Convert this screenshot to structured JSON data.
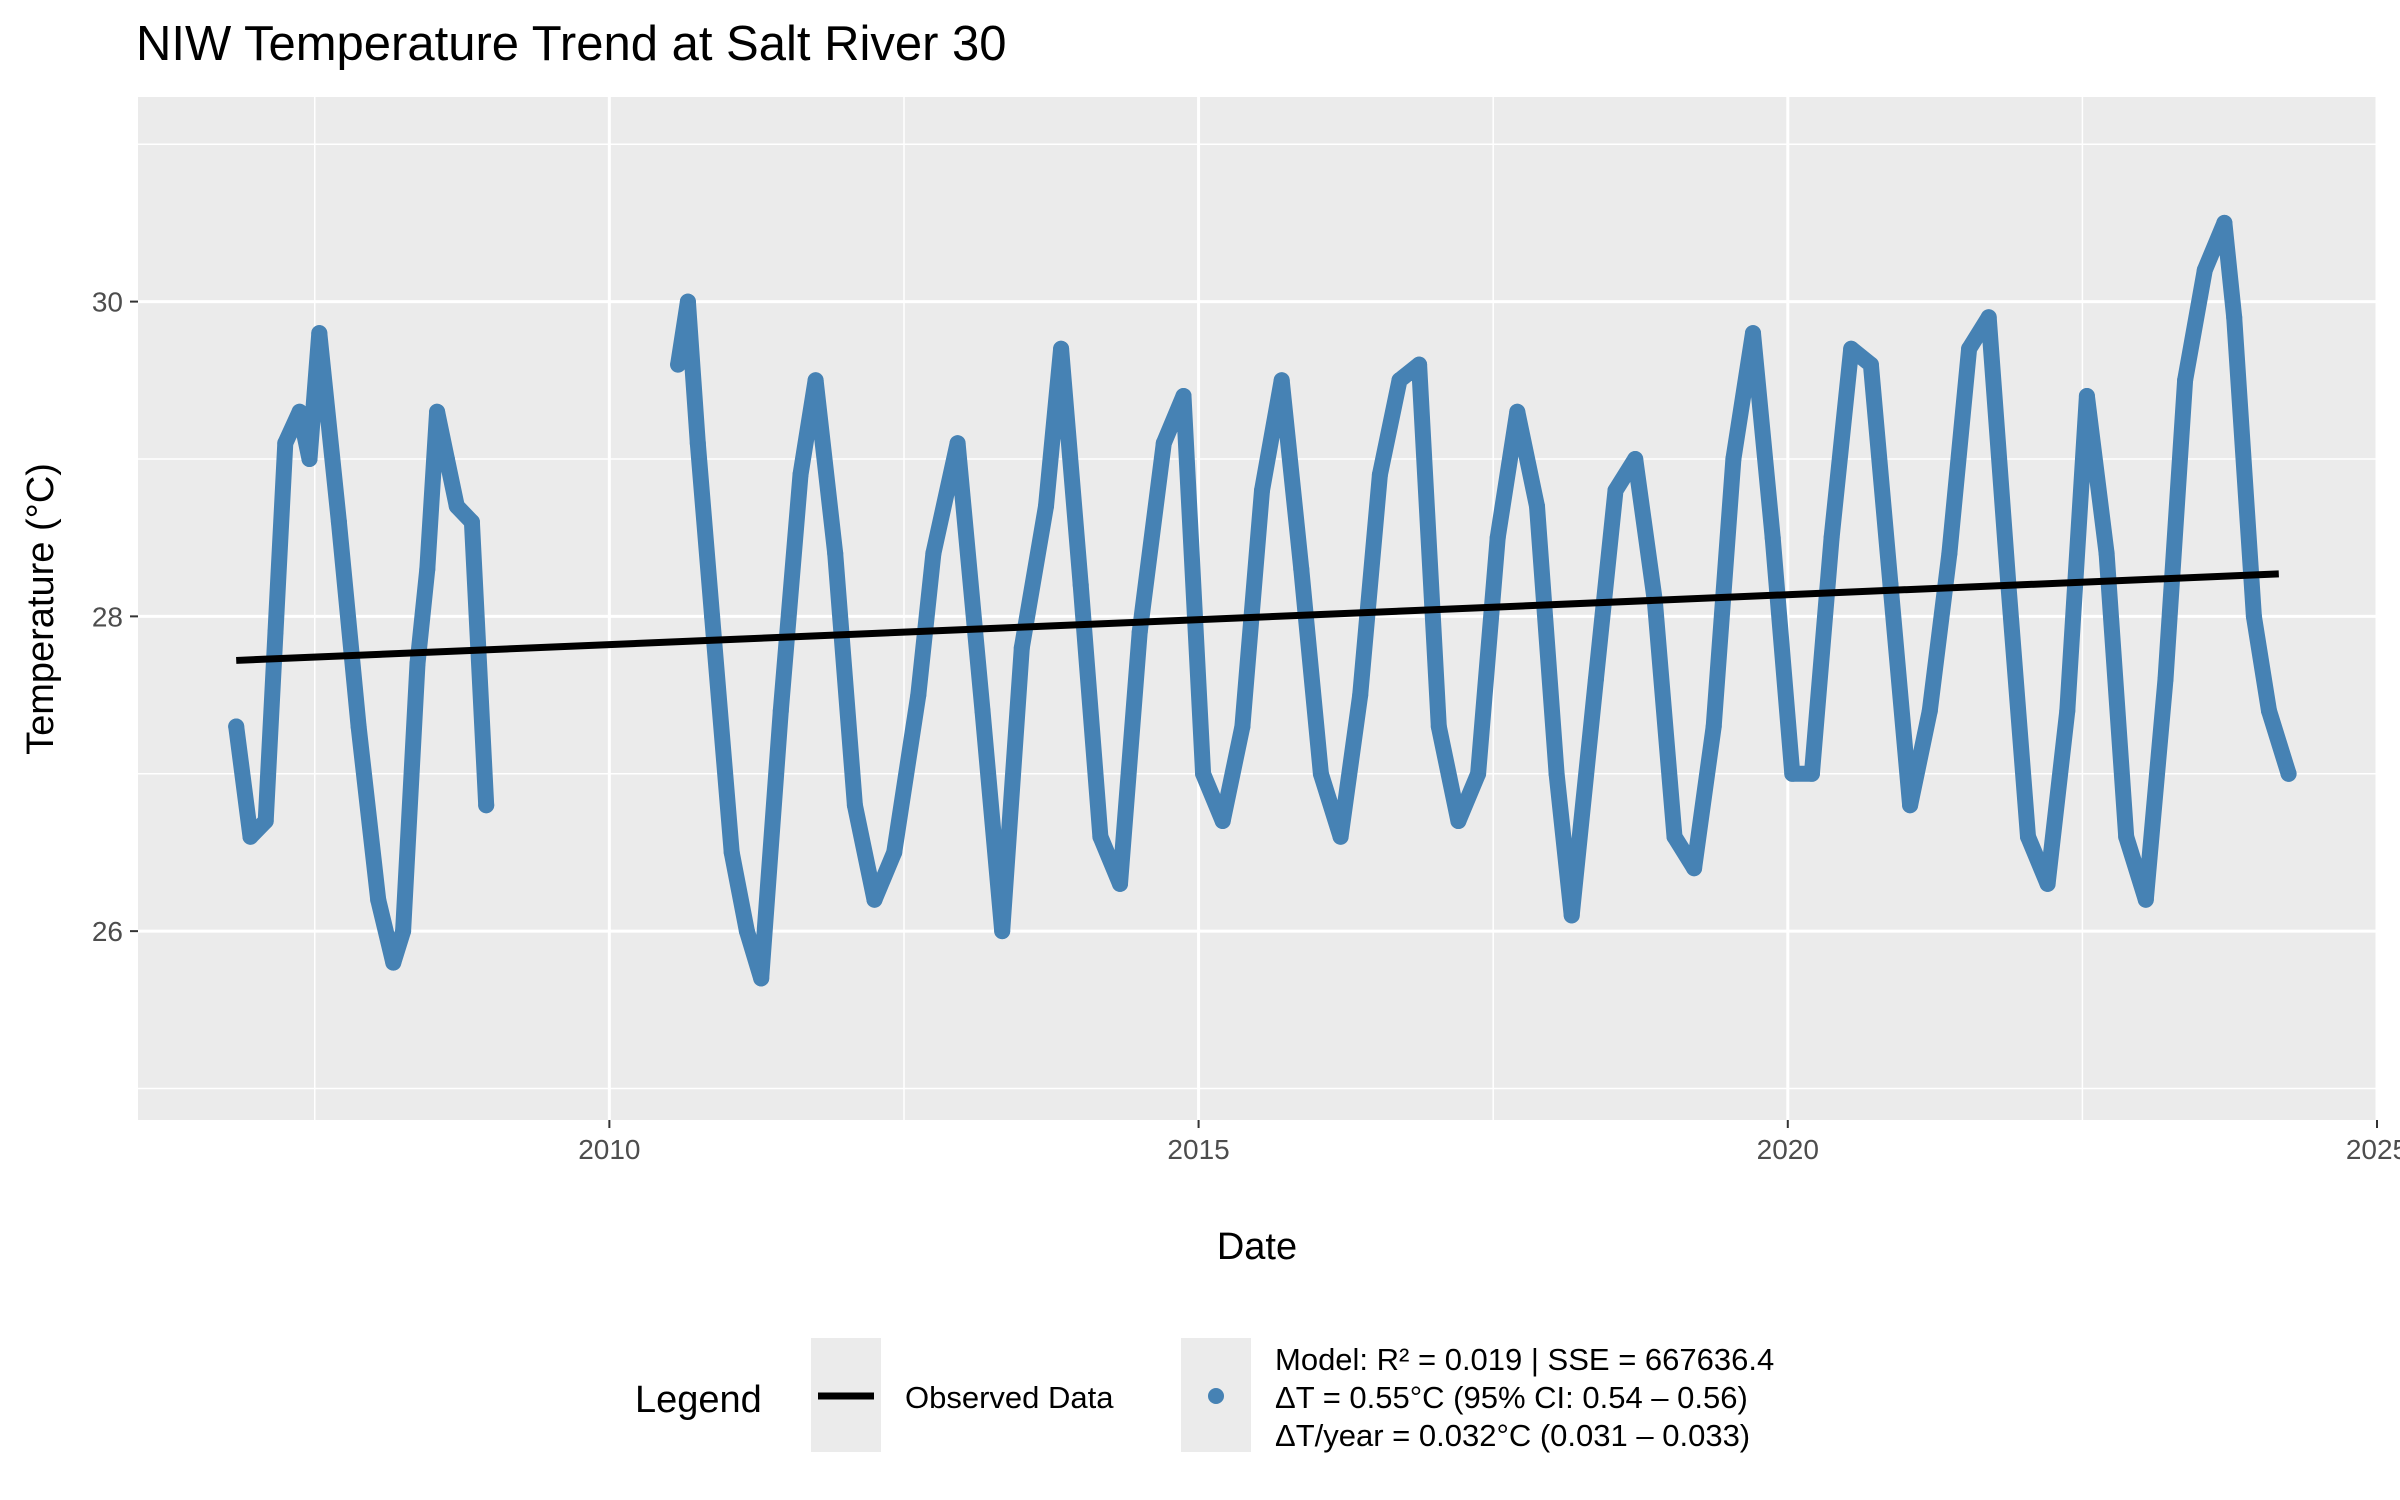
{
  "chart_data": {
    "type": "line",
    "title": "NIW Temperature Trend at Salt River 30",
    "xlabel": "Date",
    "ylabel": "Temperature (°C)",
    "xlim": [
      "2006-01-01",
      "2025-01-01"
    ],
    "ylim": [
      24.8,
      31.3
    ],
    "x_ticks": [
      "2010",
      "2015",
      "2020",
      "2025"
    ],
    "y_ticks": [
      26,
      28,
      30
    ],
    "grid": true,
    "legend_position": "bottom",
    "legend": {
      "title": "Legend",
      "observed_label": "Observed Data",
      "model_lines": [
        "Model: R² = 0.019 | SSE = 667636.4",
        "ΔT = 0.55°C (95% CI: 0.54 – 0.56)",
        "ΔT/year = 0.032°C (0.031 – 0.033)"
      ]
    },
    "colors": {
      "observed": "#4682b4",
      "trend": "#000000",
      "panel": "#ebebeb",
      "grid": "#ffffff"
    },
    "series": [
      {
        "name": "Observed Data",
        "x": [
          "2006-11-01",
          "2006-12-15",
          "2007-02-01",
          "2007-03-01",
          "2007-04-01",
          "2007-05-15",
          "2007-06-15",
          "2007-07-15",
          "2007-09-15",
          "2007-11-15",
          "2008-01-15",
          "2008-03-01",
          "2008-04-01",
          "2008-05-15",
          "2008-06-15",
          "2008-07-15",
          "2008-08-15",
          "2008-09-15",
          "2008-11-01",
          "2008-12-15",
          "2010-08-01",
          "2010-09-01",
          "2010-10-01",
          "2010-11-15",
          "2011-01-15",
          "2011-03-01",
          "2011-04-15",
          "2011-06-15",
          "2011-08-15",
          "2011-10-01",
          "2011-12-01",
          "2012-02-01",
          "2012-04-01",
          "2012-06-01",
          "2012-08-15",
          "2012-10-01",
          "2012-12-15",
          "2013-03-01",
          "2013-05-01",
          "2013-07-01",
          "2013-09-15",
          "2013-11-01",
          "2014-01-01",
          "2014-03-01",
          "2014-05-01",
          "2014-07-01",
          "2014-09-15",
          "2014-11-15",
          "2015-01-15",
          "2015-03-15",
          "2015-05-15",
          "2015-07-15",
          "2015-09-15",
          "2015-11-15",
          "2016-01-15",
          "2016-03-15",
          "2016-05-15",
          "2016-07-15",
          "2016-09-15",
          "2016-11-15",
          "2017-01-15",
          "2017-03-15",
          "2017-05-15",
          "2017-07-15",
          "2017-09-15",
          "2017-11-15",
          "2018-01-15",
          "2018-03-01",
          "2018-05-15",
          "2018-07-15",
          "2018-09-15",
          "2018-11-15",
          "2019-01-15",
          "2019-03-15",
          "2019-05-15",
          "2019-07-15",
          "2019-09-15",
          "2019-11-15",
          "2020-01-15",
          "2020-03-15",
          "2020-05-15",
          "2020-07-15",
          "2020-09-15",
          "2020-11-15",
          "2021-01-15",
          "2021-03-15",
          "2021-05-15",
          "2021-07-15",
          "2021-09-15",
          "2021-11-15",
          "2022-01-15",
          "2022-03-15",
          "2022-05-15",
          "2022-07-15",
          "2022-09-15",
          "2022-11-15",
          "2023-01-15",
          "2023-03-15",
          "2023-05-15",
          "2023-07-15",
          "2023-09-15",
          "2023-10-15",
          "2023-12-15",
          "2024-02-01",
          "2024-04-01"
        ],
        "y": [
          27.3,
          26.6,
          26.7,
          27.9,
          29.1,
          29.3,
          29.0,
          29.8,
          28.6,
          27.3,
          26.2,
          25.8,
          26.0,
          27.7,
          28.3,
          29.3,
          29.0,
          28.7,
          28.6,
          26.8,
          29.6,
          30.0,
          29.1,
          28.0,
          26.5,
          26.0,
          25.7,
          27.4,
          28.9,
          29.5,
          28.4,
          26.8,
          26.2,
          26.5,
          27.5,
          28.4,
          29.1,
          27.4,
          26.0,
          27.8,
          28.7,
          29.7,
          28.2,
          26.6,
          26.3,
          27.9,
          29.1,
          29.4,
          27.0,
          26.7,
          27.3,
          28.8,
          29.5,
          28.3,
          27.0,
          26.6,
          27.5,
          28.9,
          29.5,
          29.6,
          27.3,
          26.7,
          27.0,
          28.5,
          29.3,
          28.7,
          27.0,
          26.1,
          27.6,
          28.8,
          29.0,
          28.1,
          26.6,
          26.4,
          27.3,
          29.0,
          29.8,
          28.5,
          27.0,
          27.0,
          28.5,
          29.7,
          29.6,
          28.2,
          26.8,
          27.4,
          28.4,
          29.7,
          29.9,
          28.2,
          26.6,
          26.3,
          27.4,
          29.4,
          28.4,
          26.6,
          26.2,
          27.6,
          29.5,
          30.2,
          30.5,
          29.9,
          28.0,
          27.4,
          27.0
        ]
      },
      {
        "name": "Trend",
        "x": [
          "2006-11-01",
          "2024-03-01"
        ],
        "y": [
          27.72,
          28.27
        ]
      }
    ]
  }
}
